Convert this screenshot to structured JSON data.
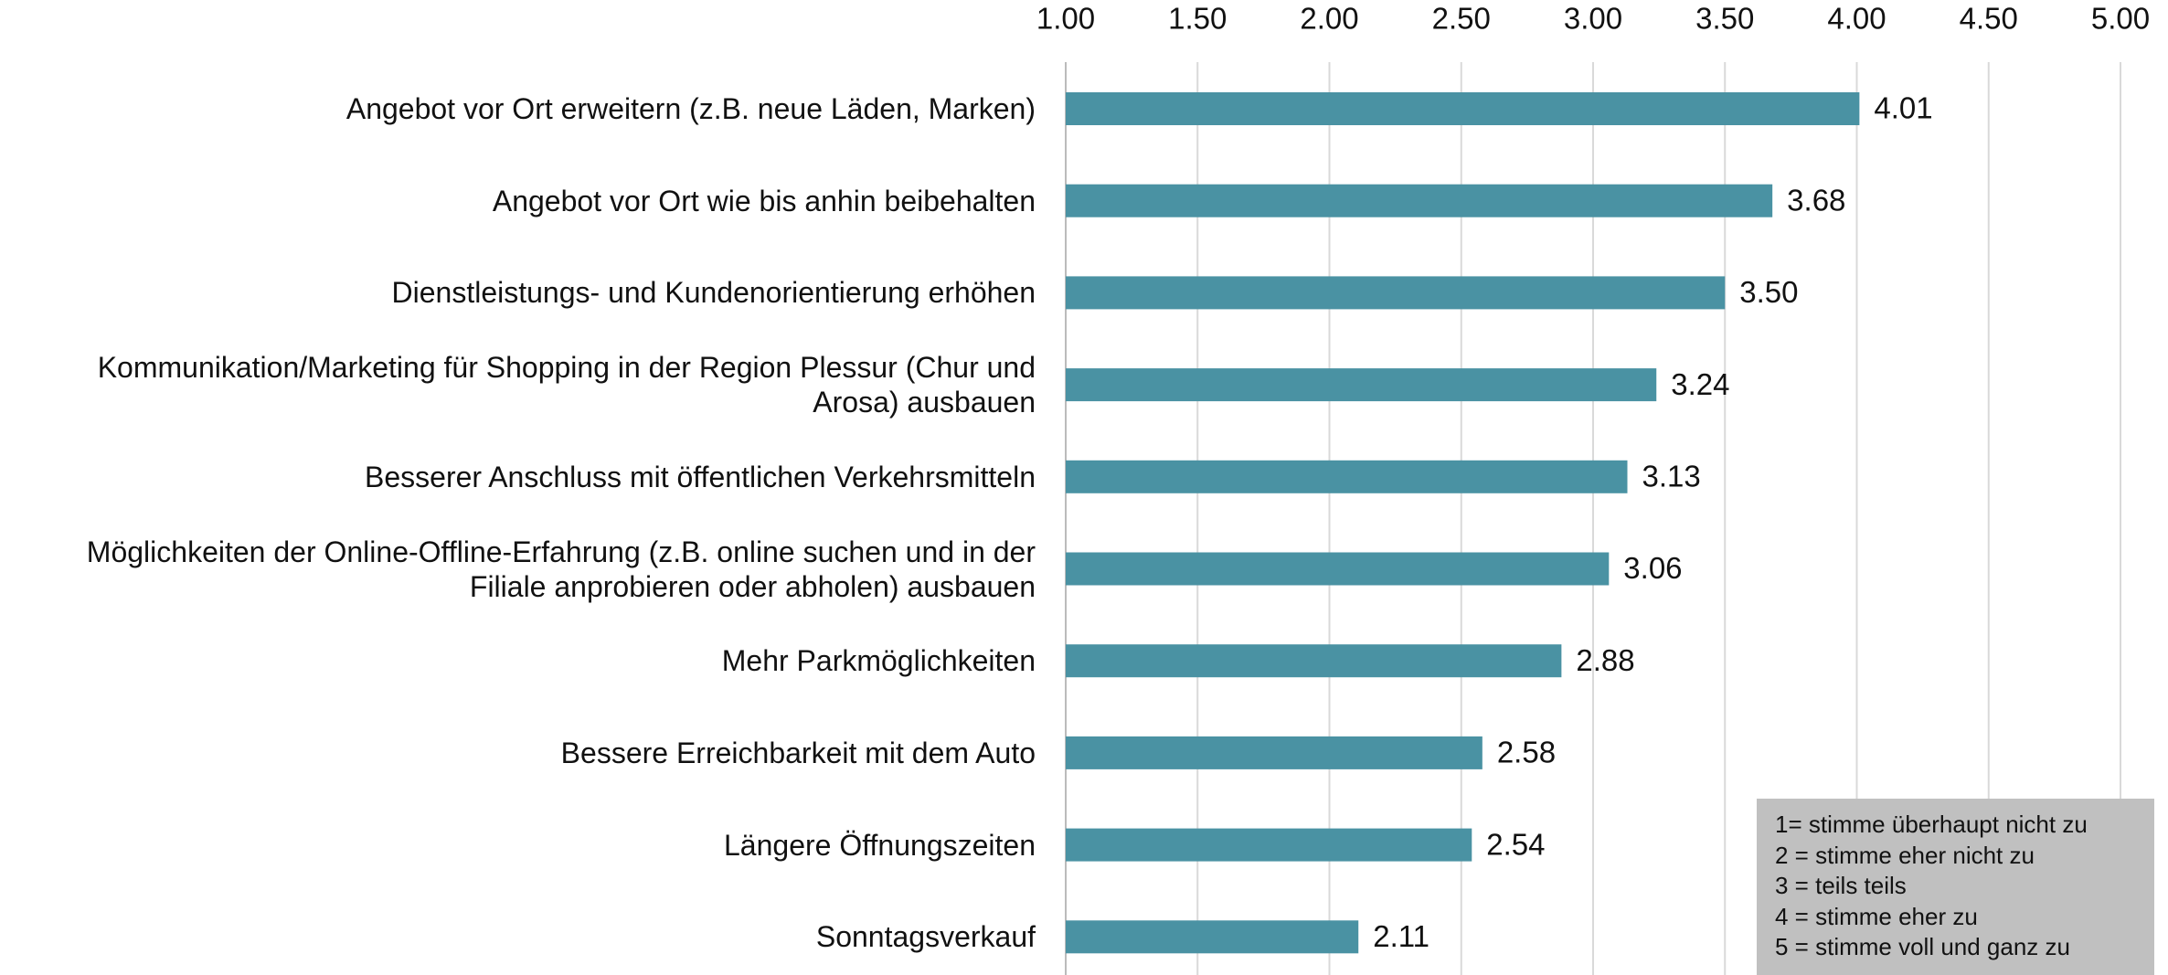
{
  "chart_data": {
    "type": "bar",
    "orientation": "horizontal",
    "categories": [
      "Angebot vor Ort erweitern (z.B. neue Läden, Marken)",
      "Angebot vor Ort wie bis anhin beibehalten",
      "Dienstleistungs- und Kundenorientierung erhöhen",
      "Kommunikation/Marketing für Shopping in der Region Plessur (Chur und Arosa) ausbauen",
      "Besserer Anschluss mit öffentlichen Verkehrsmitteln",
      "Möglichkeiten der Online-Offline-Erfahrung (z.B. online suchen und in der Filiale anprobieren oder abholen) ausbauen",
      "Mehr Parkmöglichkeiten",
      "Bessere Erreichbarkeit mit dem Auto",
      "Längere Öffnungszeiten",
      "Sonntagsverkauf"
    ],
    "values": [
      4.01,
      3.68,
      3.5,
      3.24,
      3.13,
      3.06,
      2.88,
      2.58,
      2.54,
      2.11
    ],
    "value_labels": [
      "4.01",
      "3.68",
      "3.50",
      "3.24",
      "3.13",
      "3.06",
      "2.88",
      "2.58",
      "2.54",
      "2.11"
    ],
    "color": "#4a92a3",
    "xlim": [
      1,
      5
    ],
    "xticks": [
      {
        "value": 1,
        "label": "1.00"
      },
      {
        "value": 1.5,
        "label": "1.50"
      },
      {
        "value": 2,
        "label": "2.00"
      },
      {
        "value": 2.5,
        "label": "2.50"
      },
      {
        "value": 3,
        "label": "3.00"
      },
      {
        "value": 3.5,
        "label": "3.50"
      },
      {
        "value": 4,
        "label": "4.00"
      },
      {
        "value": 4.5,
        "label": "4.50"
      },
      {
        "value": 5,
        "label": "5.00"
      }
    ],
    "grid": true,
    "note": [
      "1= stimme überhaupt nicht zu",
      "2 = stimme eher nicht zu",
      "3 = teils teils",
      "4 = stimme eher zu",
      "5 = stimme voll und ganz zu"
    ]
  }
}
